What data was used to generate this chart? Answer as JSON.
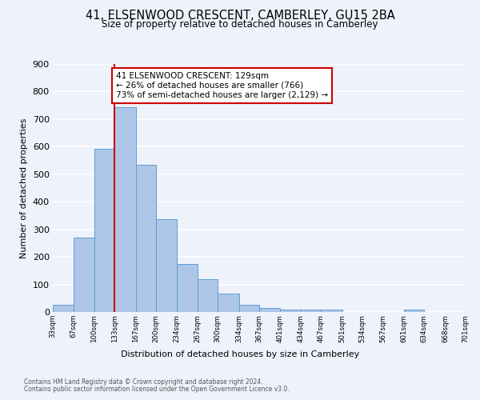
{
  "title": "41, ELSENWOOD CRESCENT, CAMBERLEY, GU15 2BA",
  "subtitle": "Size of property relative to detached houses in Camberley",
  "xlabel": "Distribution of detached houses by size in Camberley",
  "ylabel": "Number of detached properties",
  "footnote1": "Contains HM Land Registry data © Crown copyright and database right 2024.",
  "footnote2": "Contains public sector information licensed under the Open Government Licence v3.0.",
  "bar_edges": [
    33,
    67,
    100,
    133,
    167,
    200,
    234,
    267,
    300,
    334,
    367,
    401,
    434,
    467,
    501,
    534,
    567,
    601,
    634,
    668,
    701
  ],
  "bar_heights": [
    27,
    270,
    593,
    742,
    535,
    336,
    175,
    120,
    68,
    25,
    14,
    10,
    9,
    9,
    0,
    0,
    0,
    10,
    0,
    0
  ],
  "bar_color": "#aec6e8",
  "bar_edge_color": "#5a9fd4",
  "vline_x": 133,
  "vline_color": "#cc0000",
  "annotation_text": "41 ELSENWOOD CRESCENT: 129sqm\n← 26% of detached houses are smaller (766)\n73% of semi-detached houses are larger (2,129) →",
  "annotation_box_color": "#ffffff",
  "annotation_box_edge": "#cc0000",
  "ylim": [
    0,
    900
  ],
  "yticks": [
    0,
    100,
    200,
    300,
    400,
    500,
    600,
    700,
    800,
    900
  ],
  "bg_color": "#eef2fb",
  "grid_color": "#ffffff",
  "tick_labels": [
    "33sqm",
    "67sqm",
    "100sqm",
    "133sqm",
    "167sqm",
    "200sqm",
    "234sqm",
    "267sqm",
    "300sqm",
    "334sqm",
    "367sqm",
    "401sqm",
    "434sqm",
    "467sqm",
    "501sqm",
    "534sqm",
    "567sqm",
    "601sqm",
    "634sqm",
    "668sqm",
    "701sqm"
  ]
}
